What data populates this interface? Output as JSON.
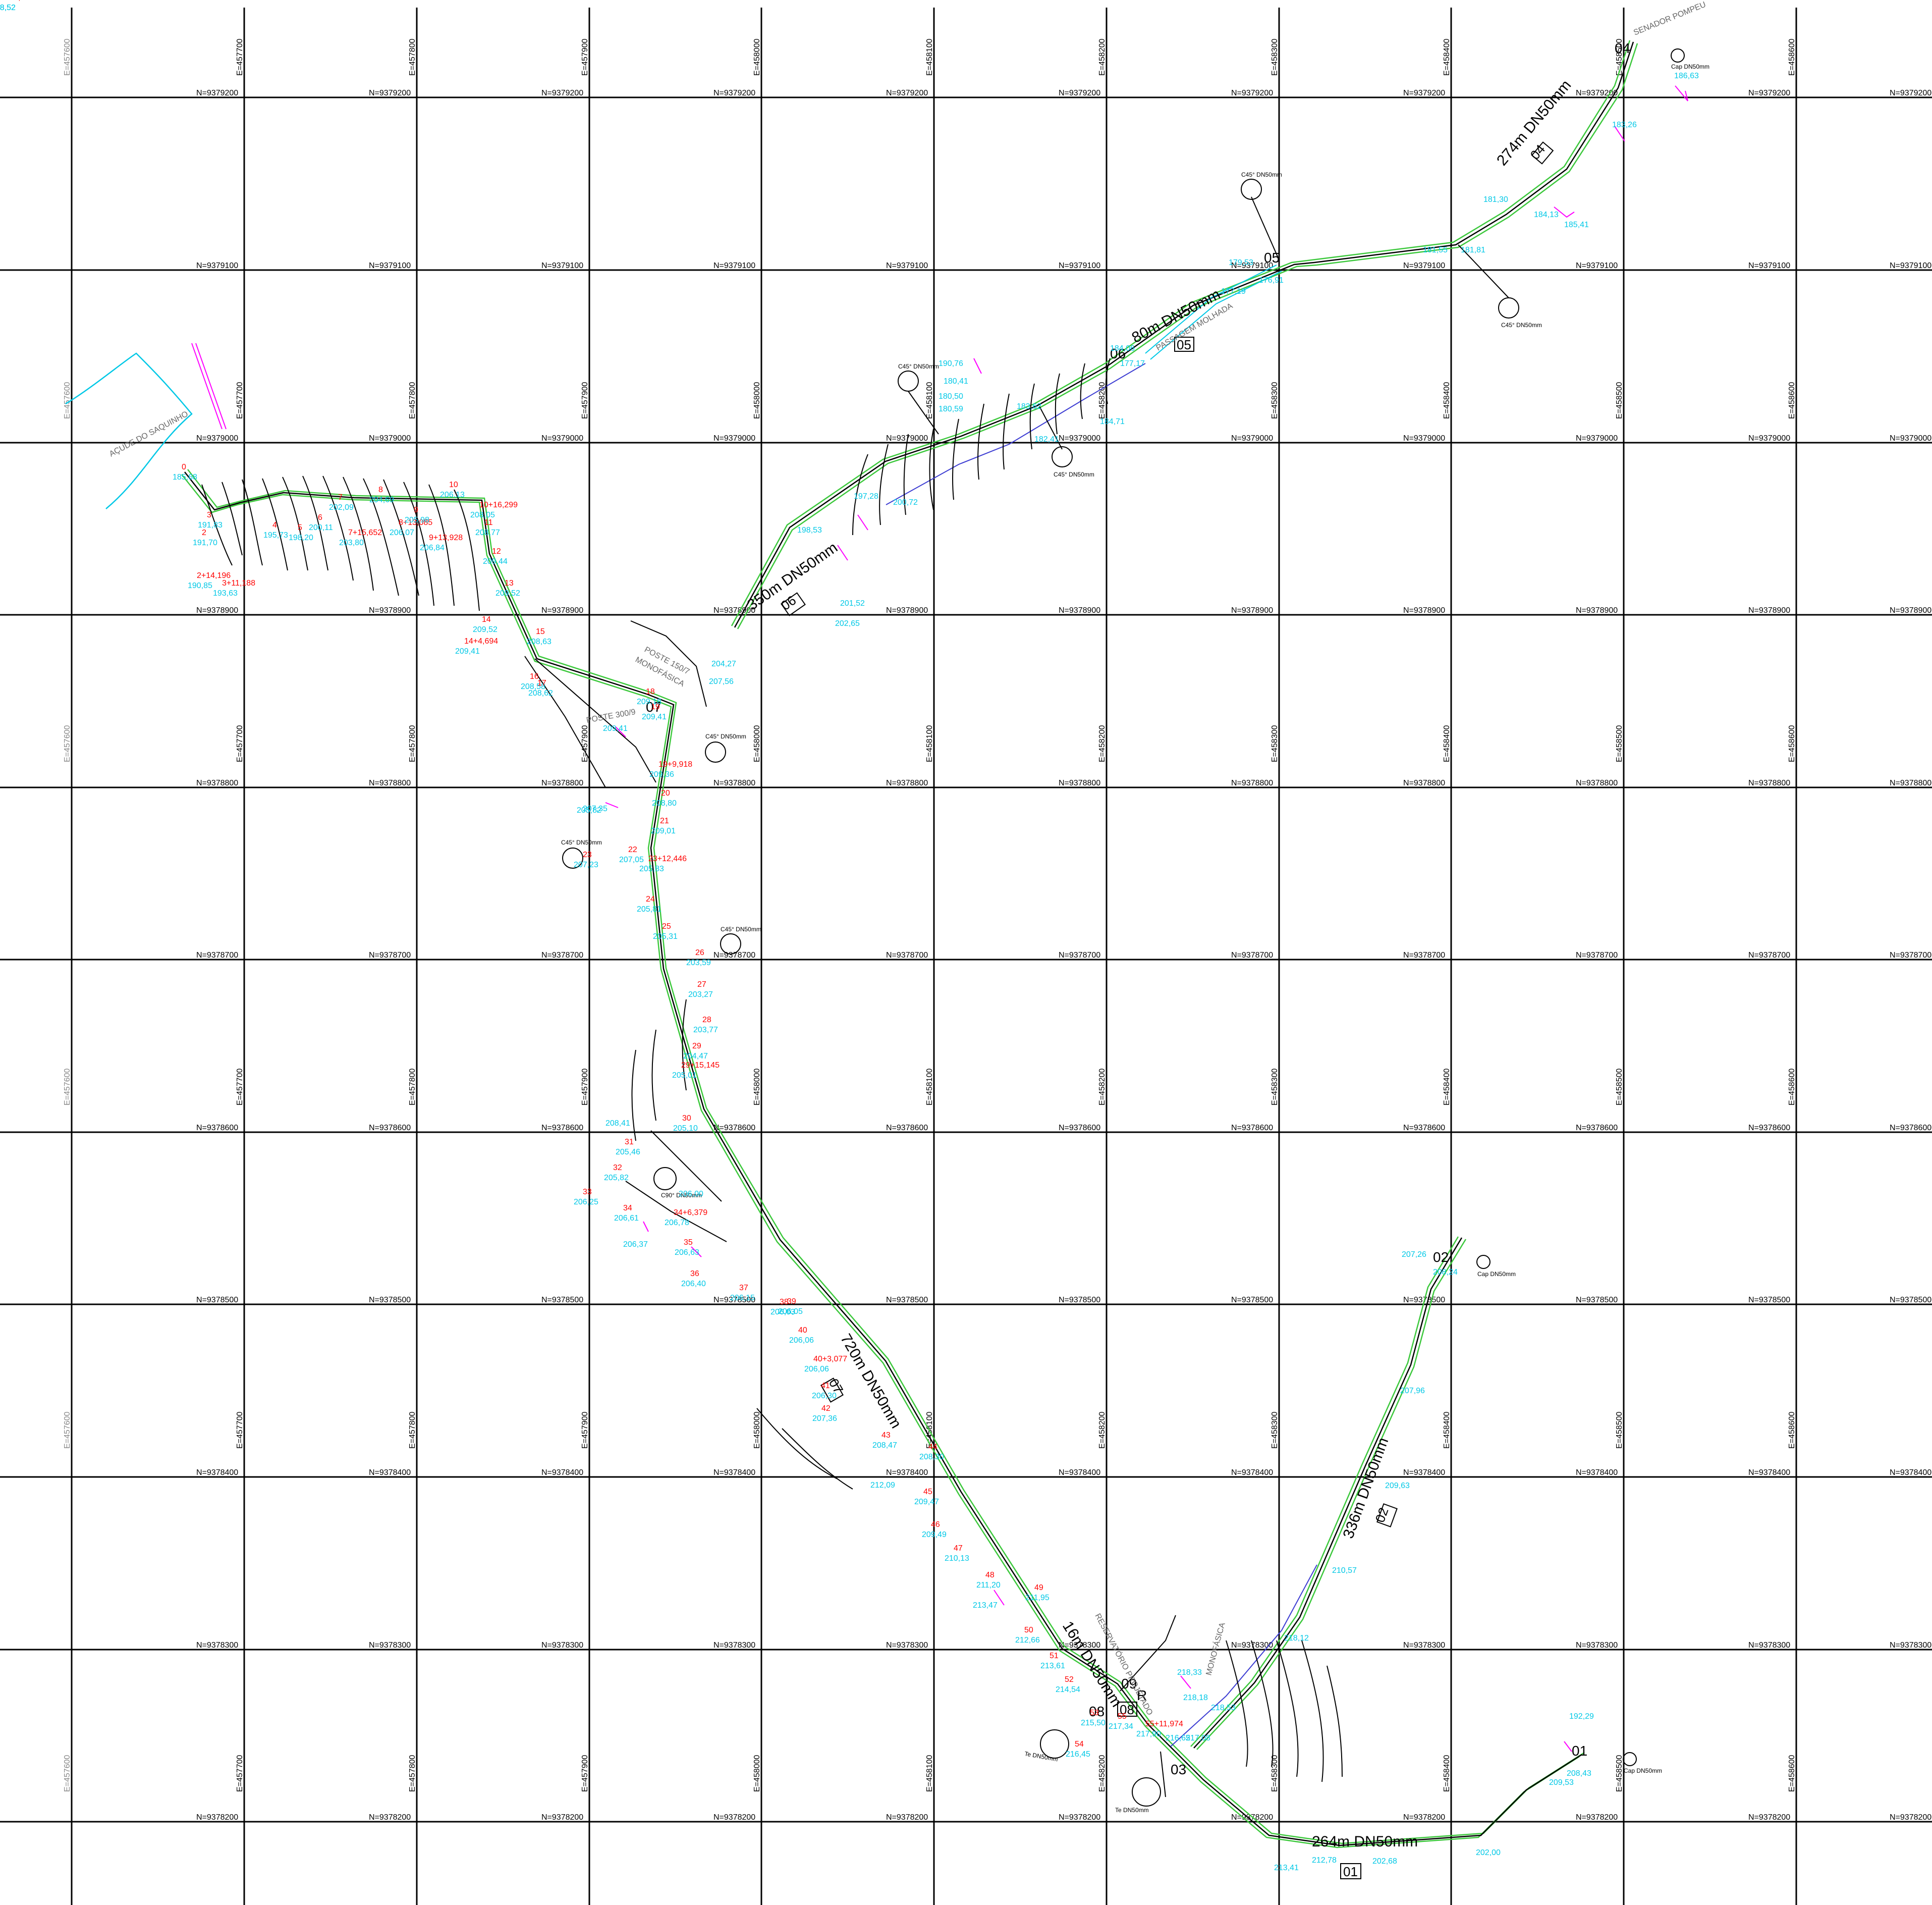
{
  "grid": {
    "northings": [
      "N=9379200",
      "N=9379100",
      "N=9379000",
      "N=9378900",
      "N=9378800",
      "N=9378700",
      "N=9378600",
      "N=9378500",
      "N=9378400",
      "N=9378300",
      "N=9378200"
    ],
    "eastings": [
      "E=457600",
      "E=457700",
      "E=457800",
      "E=457900",
      "E=458000",
      "E=458100",
      "E=458200",
      "E=458300",
      "E=458400",
      "E=458500",
      "E=458600"
    ],
    "right_labels": [
      "N=9379200",
      "N=9379100",
      "N=9379000",
      "N=9378900",
      "N=9378800",
      "N=9378700",
      "N=9378600",
      "N=9378500",
      "N=9378400",
      "N=9378300",
      "N=9378200"
    ]
  },
  "segments": [
    {
      "length": "274m  DN50mm",
      "code": "04"
    },
    {
      "length": "80m  DN50mm",
      "code": "05"
    },
    {
      "length": "350m  DN50mm",
      "code": "06"
    },
    {
      "length": "720m  DN50mm",
      "code": "07"
    },
    {
      "length": "16m  DN50mm",
      "code": "08"
    },
    {
      "length": "336m  DN50mm",
      "code": "02"
    },
    {
      "length": "264m  DN50mm",
      "code": "01"
    }
  ],
  "nodes": [
    "01",
    "02",
    "03",
    "04",
    "05",
    "06",
    "07",
    "08",
    "09",
    "R"
  ],
  "fittings": {
    "cap1": "Cap  DN50mm",
    "cap2": "Cap  DN50mm",
    "cap4": "Cap  DN50mm",
    "c45_a": "C45° DN50mm",
    "c45_b": "C45° DN50mm",
    "c45_c": "C45° DN50mm",
    "c45_d": "C45° DN50mm",
    "c45_e": "C45° DN50mm",
    "c45_f": "C45° DN50mm",
    "c45_g": "C45° DN50mm",
    "c90": "C90° DN50mm",
    "te1": "Te  DN50mm",
    "te2": "Te  DN50mm"
  },
  "annotations": {
    "acude": "AÇUDE DO SAQUINHO",
    "senador": "SENADOR POMPEU",
    "passagem": "PASSAGEM MOLHADA",
    "poste1": "POSTE 150/7",
    "mono1": "MONOFÁSICA",
    "poste2": "POSTE 300/9",
    "reservatorio": "RESERVATÓRIO PROJETADO",
    "mono2": "MONOFÁSICA"
  },
  "stations": [
    {
      "s": "0",
      "e": "185,68"
    },
    {
      "s": "2",
      "e": "191,70"
    },
    {
      "s": "2+14,196",
      "e": "190,85"
    },
    {
      "s": "3",
      "e": "191,83"
    },
    {
      "s": "3+11,188",
      "e": "193,63"
    },
    {
      "s": "4",
      "e": "195,73"
    },
    {
      "s": "5",
      "e": "198,20"
    },
    {
      "s": "6",
      "e": "200,11"
    },
    {
      "s": "7",
      "e": "202,09"
    },
    {
      "s": "7+15,652",
      "e": "203,80"
    },
    {
      "s": "8",
      "e": "204,69"
    },
    {
      "s": "8+13,085",
      "e": "206,07"
    },
    {
      "s": "9",
      "e": "205,98"
    },
    {
      "s": "9+13,928",
      "e": "206,84"
    },
    {
      "s": "10",
      "e": "206,13"
    },
    {
      "s": "10+16,299",
      "e": "208,05"
    },
    {
      "s": "11",
      "e": "208,77"
    },
    {
      "s": "12",
      "e": "209,44"
    },
    {
      "s": "13",
      "e": "209,52"
    },
    {
      "s": "14",
      "e": "209,52"
    },
    {
      "s": "14+4,694",
      "e": "209,41"
    },
    {
      "s": "15",
      "e": "208,63"
    },
    {
      "s": "16",
      "e": "208,58"
    },
    {
      "s": "17",
      "e": "208,62"
    },
    {
      "s": "18",
      "e": "209,18"
    },
    {
      "s": "19",
      "e": "209,41"
    },
    {
      "s": "19+9,918",
      "e": "209,36"
    },
    {
      "s": "20",
      "e": "208,80"
    },
    {
      "s": "21",
      "e": "209,01"
    },
    {
      "s": "22",
      "e": "207,05"
    },
    {
      "s": "23",
      "e": "207,23"
    },
    {
      "s": "23+12,446",
      "e": "205,83"
    },
    {
      "s": "24",
      "e": "205,81"
    },
    {
      "s": "25",
      "e": "205,31"
    },
    {
      "s": "26",
      "e": "203,59"
    },
    {
      "s": "27",
      "e": "203,27"
    },
    {
      "s": "28",
      "e": "203,77"
    },
    {
      "s": "29",
      "e": "204,47"
    },
    {
      "s": "29+15,145",
      "e": "205,01"
    },
    {
      "s": "30",
      "e": "205,10"
    },
    {
      "s": "31",
      "e": "205,46"
    },
    {
      "s": "32",
      "e": "205,82"
    },
    {
      "s": "33",
      "e": "206,25"
    },
    {
      "s": "34",
      "e": "206,61"
    },
    {
      "s": "34+6,379",
      "e": "206,78"
    },
    {
      "s": "35",
      "e": "206,63"
    },
    {
      "s": "36",
      "e": "206,40"
    },
    {
      "s": "37",
      "e": "206,15"
    },
    {
      "s": "38",
      "e": "206,03"
    },
    {
      "s": "39",
      "e": "206,05"
    },
    {
      "s": "40",
      "e": "206,06"
    },
    {
      "s": "40+3,077",
      "e": "206,06"
    },
    {
      "s": "41",
      "e": "206,30"
    },
    {
      "s": "42",
      "e": "207,36"
    },
    {
      "s": "43",
      "e": "208,47"
    },
    {
      "s": "44",
      "e": "208,30"
    },
    {
      "s": "45",
      "e": "209,47"
    },
    {
      "s": "46",
      "e": "209,49"
    },
    {
      "s": "47",
      "e": "210,13"
    },
    {
      "s": "48",
      "e": "211,20"
    },
    {
      "s": "49",
      "e": "211,95"
    },
    {
      "s": "50",
      "e": "212,66"
    },
    {
      "s": "51",
      "e": "213,61"
    },
    {
      "s": "52",
      "e": "214,54"
    },
    {
      "s": "53",
      "e": "215,50"
    },
    {
      "s": "54",
      "e": "216,45"
    },
    {
      "s": "55",
      "e": "217,34"
    },
    {
      "s": "55+11,974",
      "e": "217,90"
    },
    {
      "s": "56",
      "e": "218,52"
    },
    {
      "s": "56+8,416",
      "e": "218,52"
    }
  ],
  "spot_elevations": [
    "186,63",
    "185,41",
    "184,13",
    "183,26",
    "181,81",
    "181,55",
    "181,30",
    "179,53",
    "176,91",
    "177,19",
    "177,17",
    "180,41",
    "182,41",
    "183,62",
    "184,71",
    "180,50",
    "180,59",
    "184,06",
    "190,76",
    "197,28",
    "198,53",
    "200,72",
    "201,52",
    "202,65",
    "204,27",
    "207,56",
    "205,82",
    "207,35",
    "209,41",
    "208,41",
    "206,37",
    "206,00",
    "212,09",
    "213,47",
    "218,33",
    "218,18",
    "218,53",
    "216,65",
    "217,08",
    "213,41",
    "212,78",
    "202,68",
    "202,00",
    "209,53",
    "208,43",
    "207,26",
    "208,24",
    "207,96",
    "209,63",
    "210,57",
    "218,12",
    "192,29"
  ]
}
